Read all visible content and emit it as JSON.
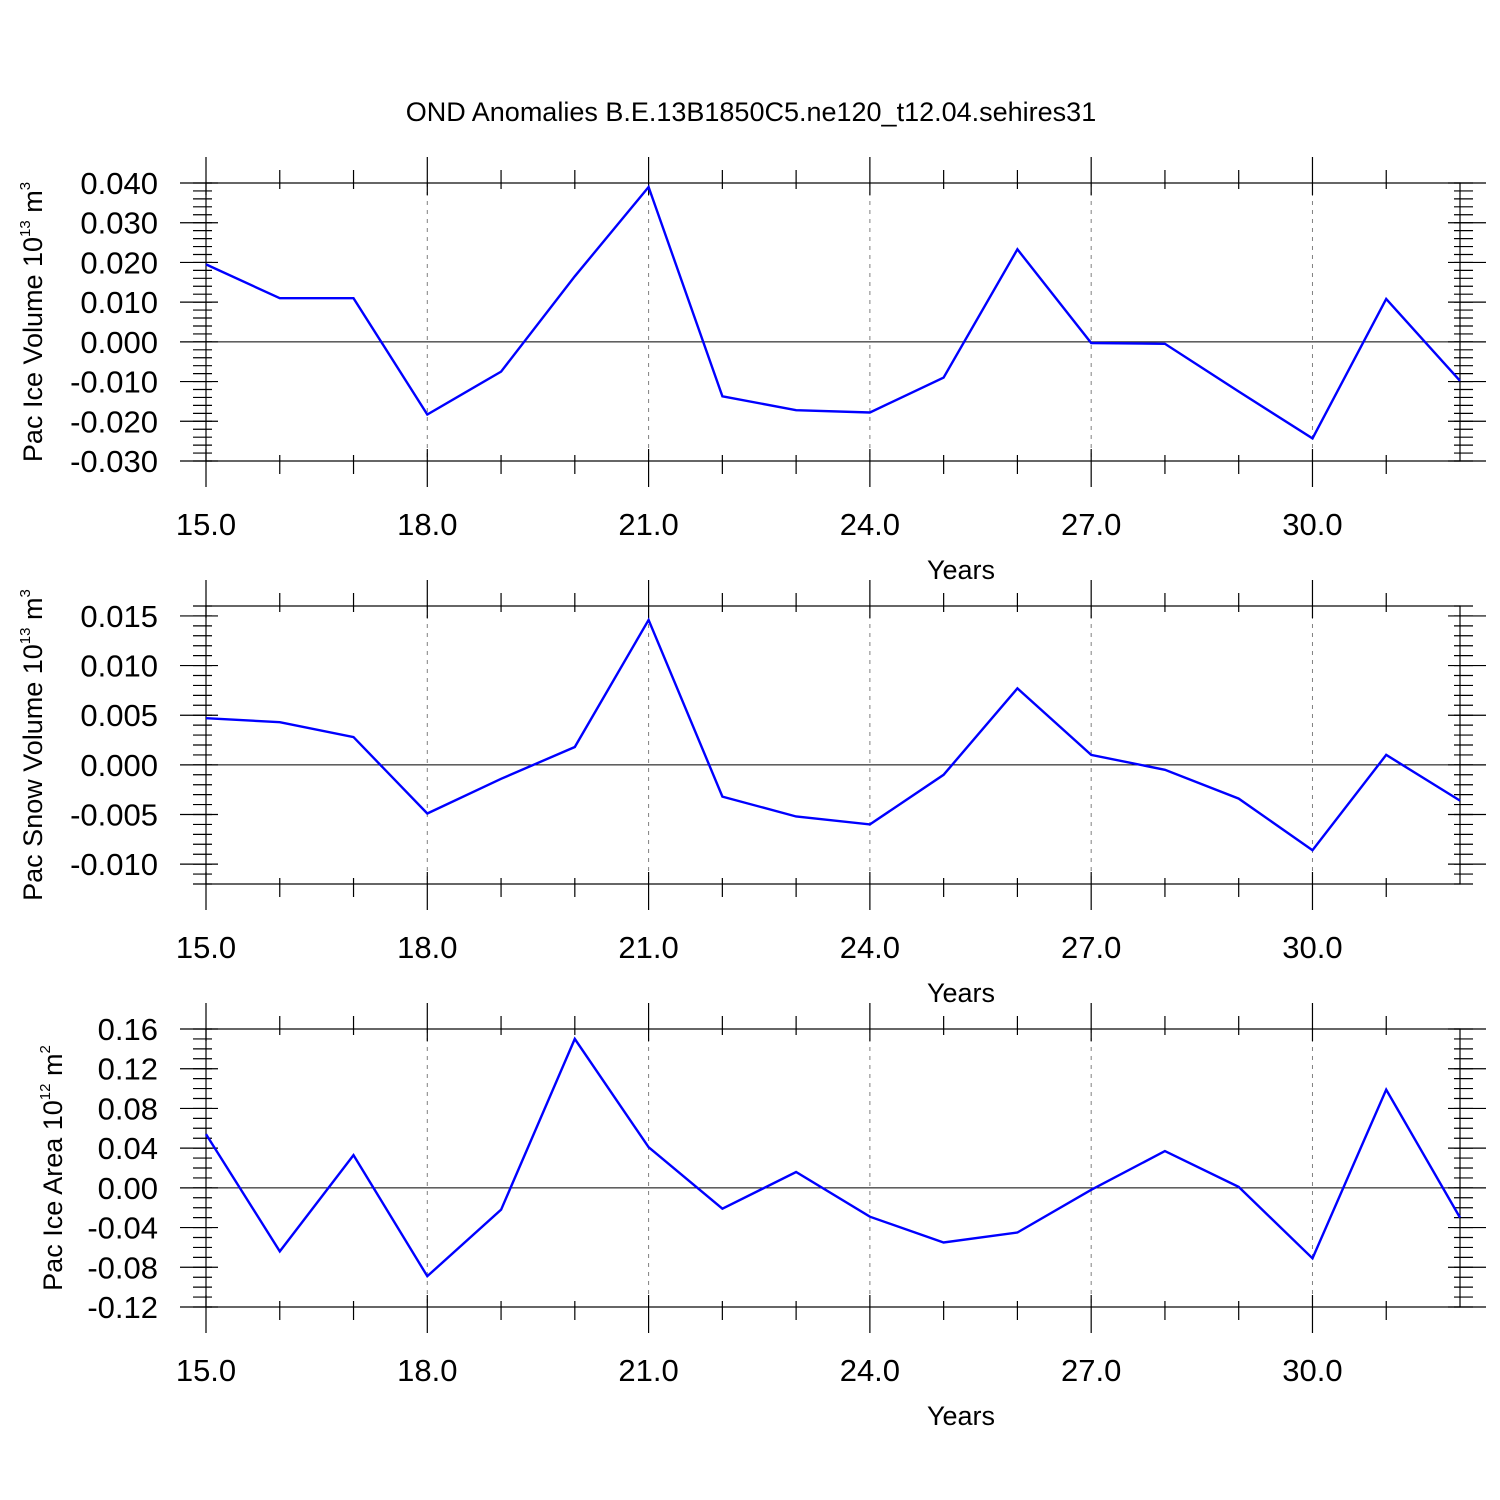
{
  "title": "OND Anomalies B.E.13B1850C5.ne120_t12.04.sehires31",
  "colors": {
    "line": "#0000ff",
    "axis": "#000000",
    "grid": "#808080"
  },
  "chart_data": [
    {
      "type": "line",
      "xlabel": "Years",
      "ylabel": {
        "text": "Pac Ice Volume 10",
        "exp": "13",
        "unit": " m",
        "unit_exp": "3"
      },
      "xlim": [
        15,
        32
      ],
      "ylim": [
        -0.03,
        0.04
      ],
      "x_ticks": [
        15,
        18,
        21,
        24,
        27,
        30
      ],
      "x_tick_labels": [
        "15.0",
        "18.0",
        "21.0",
        "24.0",
        "27.0",
        "30.0"
      ],
      "x_minor_ticks": [
        16,
        17,
        19,
        20,
        22,
        23,
        25,
        26,
        28,
        29,
        31
      ],
      "y_ticks": [
        0.04,
        0.03,
        0.02,
        0.01,
        0.0,
        -0.01,
        -0.02,
        -0.03
      ],
      "y_tick_labels": [
        "0.040",
        "0.030",
        "0.020",
        "0.010",
        "0.000",
        "-0.010",
        "-0.020",
        "-0.030"
      ],
      "y_minor_step": 0.002,
      "grid": "vertical dashed at major x ticks",
      "series": [
        {
          "x": [
            15,
            16,
            17,
            18,
            19,
            20,
            21,
            22,
            23,
            24,
            25,
            26,
            27,
            28,
            29,
            30,
            31,
            32
          ],
          "y": [
            0.0195,
            0.011,
            0.011,
            -0.0183,
            -0.0075,
            0.0165,
            0.039,
            -0.0137,
            -0.0172,
            -0.0178,
            -0.009,
            0.0233,
            -0.0003,
            -0.0005,
            -0.0125,
            -0.0243,
            0.0108,
            -0.0098
          ]
        }
      ]
    },
    {
      "type": "line",
      "xlabel": "Years",
      "ylabel": {
        "text": "Pac Snow Volume 10",
        "exp": "13",
        "unit": " m",
        "unit_exp": "3"
      },
      "xlim": [
        15,
        32
      ],
      "ylim": [
        -0.012,
        0.016
      ],
      "x_ticks": [
        15,
        18,
        21,
        24,
        27,
        30
      ],
      "x_tick_labels": [
        "15.0",
        "18.0",
        "21.0",
        "24.0",
        "27.0",
        "30.0"
      ],
      "x_minor_ticks": [
        16,
        17,
        19,
        20,
        22,
        23,
        25,
        26,
        28,
        29,
        31
      ],
      "y_ticks": [
        0.015,
        0.01,
        0.005,
        0.0,
        -0.005,
        -0.01
      ],
      "y_tick_labels": [
        "0.015",
        "0.010",
        "0.005",
        "0.000",
        "-0.005",
        "-0.010"
      ],
      "y_minor_step": 0.001,
      "grid": "vertical dashed at major x ticks",
      "series": [
        {
          "x": [
            15,
            16,
            17,
            18,
            19,
            20,
            21,
            22,
            23,
            24,
            25,
            26,
            27,
            28,
            29,
            30,
            31,
            32
          ],
          "y": [
            0.0047,
            0.0043,
            0.0028,
            -0.0049,
            -0.0014,
            0.0018,
            0.0146,
            -0.0032,
            -0.0052,
            -0.006,
            -0.001,
            0.0077,
            0.001,
            -0.0005,
            -0.0034,
            -0.0086,
            0.001,
            -0.0036
          ]
        }
      ]
    },
    {
      "type": "line",
      "xlabel": "Years",
      "ylabel": {
        "text": "Pac Ice Area 10",
        "exp": "12",
        "unit": " m",
        "unit_exp": "2"
      },
      "xlim": [
        15,
        32
      ],
      "ylim": [
        -0.12,
        0.16
      ],
      "x_ticks": [
        15,
        18,
        21,
        24,
        27,
        30
      ],
      "x_tick_labels": [
        "15.0",
        "18.0",
        "21.0",
        "24.0",
        "27.0",
        "30.0"
      ],
      "x_minor_ticks": [
        16,
        17,
        19,
        20,
        22,
        23,
        25,
        26,
        28,
        29,
        31
      ],
      "y_ticks": [
        0.16,
        0.12,
        0.08,
        0.04,
        0.0,
        -0.04,
        -0.08,
        -0.12
      ],
      "y_tick_labels": [
        "0.16",
        "0.12",
        "0.08",
        "0.04",
        "0.00",
        "-0.04",
        "-0.08",
        "-0.12"
      ],
      "y_minor_step": 0.01,
      "grid": "vertical dashed at major x ticks",
      "series": [
        {
          "x": [
            15,
            16,
            17,
            18,
            19,
            20,
            21,
            22,
            23,
            24,
            25,
            26,
            27,
            28,
            29,
            30,
            31,
            32
          ],
          "y": [
            0.054,
            -0.064,
            0.033,
            -0.089,
            -0.022,
            0.15,
            0.041,
            -0.021,
            0.016,
            -0.029,
            -0.055,
            -0.045,
            -0.002,
            0.037,
            0.001,
            -0.071,
            0.099,
            -0.03
          ]
        }
      ]
    }
  ]
}
